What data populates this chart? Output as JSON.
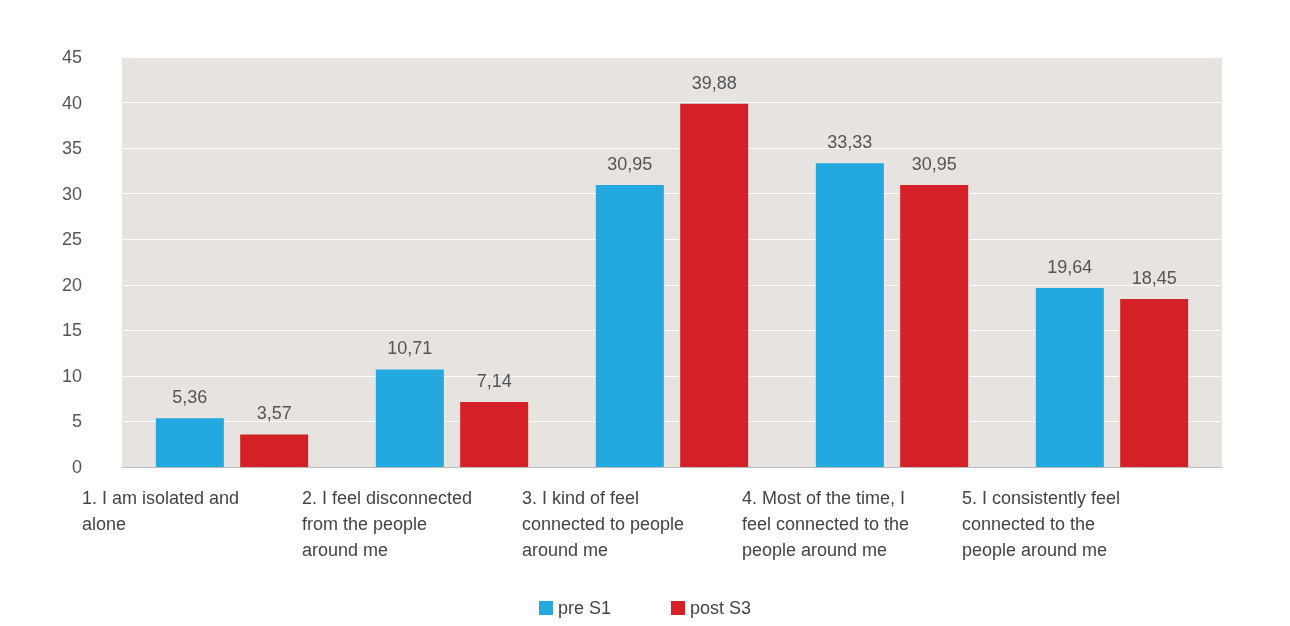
{
  "chart_data": {
    "type": "bar",
    "categories": [
      "1. I am isolated and alone",
      "2. I feel disconnected from the people around me",
      "3. I kind of feel connected to people around me",
      "4. Most of the time, I feel connected to the people around me",
      "5. I consistently feel connected to the people around me"
    ],
    "series": [
      {
        "name": "pre S1",
        "color": "#23a8e0",
        "values": [
          5.36,
          10.71,
          30.95,
          33.33,
          19.64
        ],
        "value_labels": [
          "5,36",
          "10,71",
          "30,95",
          "33,33",
          "19,64"
        ]
      },
      {
        "name": "post S3",
        "color": "#d42027",
        "values": [
          3.57,
          7.14,
          39.88,
          30.95,
          18.45
        ],
        "value_labels": [
          "3,57",
          "7,14",
          "39,88",
          "30,95",
          "18,45"
        ]
      }
    ],
    "ylim": [
      0,
      45
    ],
    "yticks": [
      0,
      5,
      10,
      15,
      20,
      25,
      30,
      35,
      40,
      45
    ],
    "grid": "y",
    "legend": "bottom"
  }
}
